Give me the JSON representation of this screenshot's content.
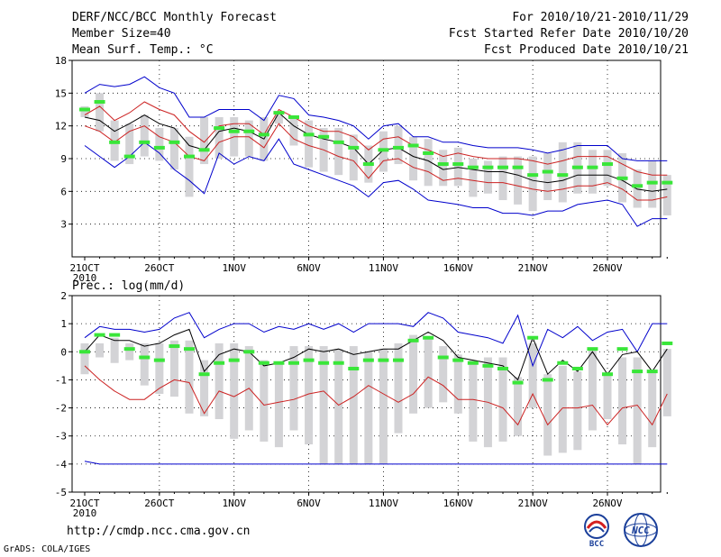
{
  "header": {
    "title": "DERF/NCC/BCC Monthly Forecast",
    "member_size": "Member Size=40",
    "variable": "Mean Surf. Temp.: °C",
    "for_period": "For 2010/10/21-2010/11/29",
    "fcst_started": "Fcst Started Refer Date 2010/10/20",
    "fcst_produced": "Fcst Produced Date 2010/10/21"
  },
  "footer": {
    "url": "http://cmdp.ncc.cma.gov.cn",
    "grads_credit": "GrADS: COLA/IGES",
    "logo_bcc_text": "BCC",
    "logo_ncc_text": "NCC"
  },
  "colors": {
    "box": "#d3d3d6",
    "median": "#39e639",
    "mean": "#000000",
    "spread": "#cc2222",
    "extreme": "#0000cc",
    "grid": "#000000"
  },
  "chart_data": [
    {
      "type": "box-ensemble",
      "title": "Mean Surf. Temp.: °C",
      "x_tick_labels": [
        "21OCT",
        "26OCT",
        "1NOV",
        "6NOV",
        "11NOV",
        "16NOV",
        "21NOV",
        "26NOV"
      ],
      "x_tick_days": [
        1,
        6,
        11,
        16,
        21,
        26,
        31,
        36
      ],
      "x_year_label": "2010",
      "days": [
        1,
        2,
        3,
        4,
        5,
        6,
        7,
        8,
        9,
        10,
        11,
        12,
        13,
        14,
        15,
        16,
        17,
        18,
        19,
        20,
        21,
        22,
        23,
        24,
        25,
        26,
        27,
        28,
        29,
        30,
        31,
        32,
        33,
        34,
        35,
        36,
        37,
        38,
        39,
        40
      ],
      "ylim": [
        0,
        18
      ],
      "yticks": [
        3,
        6,
        9,
        12,
        15,
        18
      ],
      "upper_envelope": [
        15.0,
        15.8,
        15.6,
        15.8,
        16.5,
        15.5,
        15.0,
        12.8,
        12.8,
        13.5,
        13.5,
        13.5,
        12.5,
        14.8,
        14.5,
        13.0,
        12.8,
        12.5,
        12.0,
        10.8,
        12.0,
        12.2,
        11.0,
        11.0,
        10.5,
        10.5,
        10.2,
        10.0,
        10.0,
        10.0,
        9.8,
        9.5,
        9.8,
        10.2,
        10.2,
        10.2,
        9.0,
        8.8,
        8.8,
        8.8
      ],
      "upper_spread": [
        13.0,
        13.8,
        12.5,
        13.2,
        14.2,
        13.5,
        13.0,
        11.5,
        10.5,
        12.0,
        12.2,
        12.2,
        11.2,
        13.5,
        12.8,
        12.0,
        11.5,
        11.5,
        11.0,
        9.8,
        10.8,
        11.0,
        10.2,
        9.8,
        9.2,
        9.5,
        9.2,
        9.0,
        9.0,
        9.0,
        8.8,
        8.5,
        8.8,
        9.2,
        9.2,
        9.2,
        8.5,
        7.8,
        7.5,
        7.5
      ],
      "mean": [
        12.8,
        12.5,
        11.5,
        12.2,
        13.0,
        12.2,
        11.8,
        10.2,
        9.8,
        11.5,
        11.8,
        11.5,
        10.8,
        13.2,
        12.0,
        11.2,
        10.8,
        10.5,
        10.0,
        8.5,
        9.8,
        10.0,
        9.2,
        8.8,
        8.0,
        8.2,
        8.0,
        7.8,
        7.8,
        7.5,
        7.0,
        6.8,
        7.0,
        7.5,
        7.5,
        7.5,
        7.0,
        6.2,
        6.0,
        6.2
      ],
      "lower_spread": [
        12.0,
        11.5,
        10.5,
        11.5,
        12.0,
        11.0,
        10.5,
        9.2,
        8.8,
        10.5,
        11.0,
        11.0,
        10.0,
        12.2,
        10.8,
        10.2,
        9.8,
        9.2,
        8.8,
        7.2,
        8.8,
        9.0,
        8.2,
        7.8,
        7.0,
        7.2,
        7.0,
        6.8,
        6.8,
        6.5,
        6.2,
        6.0,
        6.2,
        6.5,
        6.5,
        6.8,
        6.2,
        5.2,
        5.2,
        5.5
      ],
      "lower_envelope": [
        10.2,
        9.2,
        8.2,
        9.2,
        10.5,
        9.5,
        8.0,
        7.0,
        5.8,
        9.5,
        8.5,
        9.2,
        8.8,
        10.8,
        8.5,
        8.0,
        7.5,
        7.0,
        6.5,
        5.5,
        6.8,
        7.0,
        6.2,
        5.2,
        5.0,
        4.8,
        4.5,
        4.5,
        4.0,
        4.0,
        3.8,
        4.2,
        4.2,
        4.8,
        5.0,
        5.2,
        4.8,
        2.8,
        3.5,
        3.5
      ],
      "box_high": [
        13.8,
        15.0,
        12.5,
        12.2,
        13.0,
        11.8,
        11.8,
        11.0,
        12.8,
        12.8,
        12.8,
        12.5,
        12.8,
        13.0,
        12.8,
        12.5,
        11.8,
        11.8,
        11.2,
        10.2,
        11.5,
        12.0,
        11.0,
        10.8,
        9.8,
        10.0,
        9.0,
        8.8,
        9.2,
        9.2,
        9.2,
        9.5,
        10.5,
        10.5,
        9.8,
        9.8,
        9.5,
        8.0,
        8.8,
        7.5
      ],
      "box_low": [
        12.8,
        11.5,
        8.8,
        8.5,
        9.2,
        8.8,
        8.0,
        5.5,
        8.5,
        9.0,
        9.2,
        9.2,
        8.8,
        12.2,
        10.2,
        8.2,
        7.8,
        7.5,
        7.0,
        6.8,
        7.8,
        8.5,
        7.0,
        6.5,
        6.5,
        6.5,
        5.5,
        5.8,
        5.2,
        4.8,
        4.2,
        5.2,
        5.0,
        5.8,
        5.8,
        6.5,
        5.0,
        4.5,
        4.5,
        3.8
      ],
      "median": [
        13.5,
        14.2,
        10.5,
        9.2,
        10.5,
        10.0,
        10.5,
        9.2,
        9.8,
        11.8,
        11.5,
        11.5,
        11.2,
        13.2,
        12.8,
        11.2,
        11.0,
        10.5,
        10.0,
        8.5,
        9.8,
        10.0,
        10.2,
        9.5,
        8.5,
        8.5,
        8.2,
        8.2,
        8.2,
        8.2,
        7.5,
        7.8,
        7.5,
        8.2,
        8.2,
        8.5,
        7.2,
        6.5,
        6.8,
        6.8
      ]
    },
    {
      "type": "box-ensemble",
      "title": "Prec.: log(mm/d)",
      "x_tick_labels": [
        "21OCT",
        "26OCT",
        "1NOV",
        "6NOV",
        "11NOV",
        "16NOV",
        "21NOV",
        "26NOV"
      ],
      "x_tick_days": [
        1,
        6,
        11,
        16,
        21,
        26,
        31,
        36
      ],
      "x_year_label": "2010",
      "days": [
        1,
        2,
        3,
        4,
        5,
        6,
        7,
        8,
        9,
        10,
        11,
        12,
        13,
        14,
        15,
        16,
        17,
        18,
        19,
        20,
        21,
        22,
        23,
        24,
        25,
        26,
        27,
        28,
        29,
        30,
        31,
        32,
        33,
        34,
        35,
        36,
        37,
        38,
        39,
        40
      ],
      "ylim": [
        -5,
        2
      ],
      "yticks": [
        -5,
        -4,
        -3,
        -2,
        -1,
        0,
        1,
        2
      ],
      "upper_envelope": [
        0.5,
        0.9,
        0.8,
        0.8,
        0.7,
        0.8,
        1.2,
        1.4,
        0.5,
        0.8,
        1.0,
        1.0,
        0.7,
        0.9,
        0.8,
        1.0,
        0.8,
        1.0,
        0.7,
        1.0,
        1.0,
        1.0,
        0.9,
        1.4,
        1.2,
        0.7,
        0.6,
        0.5,
        0.3,
        1.3,
        -0.5,
        0.8,
        0.5,
        0.9,
        0.4,
        0.7,
        0.8,
        0.0,
        1.0,
        1.0
      ],
      "mean": [
        0.0,
        0.6,
        0.4,
        0.4,
        0.2,
        0.3,
        0.6,
        0.8,
        -0.7,
        -0.1,
        0.1,
        0.0,
        -0.5,
        -0.4,
        -0.2,
        0.1,
        0.0,
        0.1,
        -0.1,
        0.0,
        0.1,
        0.1,
        0.4,
        0.7,
        0.4,
        -0.2,
        -0.3,
        -0.4,
        -0.5,
        -1.0,
        0.5,
        -0.8,
        -0.3,
        -0.7,
        0.0,
        -0.8,
        -0.1,
        0.0,
        -0.7,
        0.1
      ],
      "lower_spread": [
        -0.5,
        -1.0,
        -1.4,
        -1.7,
        -1.7,
        -1.3,
        -1.0,
        -1.1,
        -2.2,
        -1.4,
        -1.6,
        -1.3,
        -1.9,
        -1.8,
        -1.7,
        -1.5,
        -1.4,
        -1.9,
        -1.6,
        -1.2,
        -1.5,
        -1.8,
        -1.5,
        -0.9,
        -1.2,
        -1.7,
        -1.7,
        -1.8,
        -2.0,
        -2.6,
        -1.5,
        -2.6,
        -2.0,
        -2.0,
        -1.9,
        -2.6,
        -2.0,
        -1.9,
        -2.6,
        -1.5
      ],
      "lower_envelope_start": [
        -3.9,
        -4.0
      ],
      "lower_envelope_end": -4.0,
      "box_high": [
        0.3,
        0.3,
        0.5,
        0.3,
        0.3,
        0.3,
        0.4,
        0.4,
        -0.3,
        0.3,
        0.3,
        0.2,
        -0.3,
        -0.4,
        0.2,
        0.2,
        0.2,
        0.1,
        0.2,
        0.0,
        0.1,
        0.3,
        0.6,
        0.5,
        0.2,
        -0.1,
        -0.3,
        -0.2,
        -0.2,
        -0.9,
        0.3,
        -0.8,
        -0.5,
        -0.7,
        0.1,
        -0.8,
        -0.2,
        -0.2,
        -0.7,
        0.1
      ],
      "box_low": [
        -0.8,
        -0.2,
        -0.4,
        -0.3,
        -1.2,
        -1.5,
        -1.6,
        -2.2,
        -2.3,
        -2.4,
        -3.1,
        -2.8,
        -3.2,
        -3.4,
        -2.8,
        -3.3,
        -4.0,
        -4.0,
        -4.0,
        -4.0,
        -4.0,
        -2.9,
        -2.2,
        -2.0,
        -1.8,
        -2.2,
        -3.2,
        -3.4,
        -3.2,
        -3.0,
        -2.0,
        -3.7,
        -3.6,
        -3.5,
        -2.8,
        -2.4,
        -3.3,
        -4.0,
        -3.4,
        -2.3
      ],
      "median": [
        0.0,
        0.6,
        0.6,
        0.1,
        -0.2,
        -0.3,
        0.2,
        0.1,
        -0.8,
        -0.4,
        -0.3,
        0.0,
        -0.4,
        -0.4,
        -0.4,
        -0.3,
        -0.4,
        -0.4,
        -0.6,
        -0.3,
        -0.3,
        -0.3,
        0.4,
        0.5,
        -0.2,
        -0.3,
        -0.4,
        -0.5,
        -0.6,
        -1.1,
        0.5,
        -1.0,
        -0.4,
        -0.6,
        0.1,
        -0.8,
        0.1,
        -0.7,
        -0.7,
        0.3
      ]
    }
  ]
}
